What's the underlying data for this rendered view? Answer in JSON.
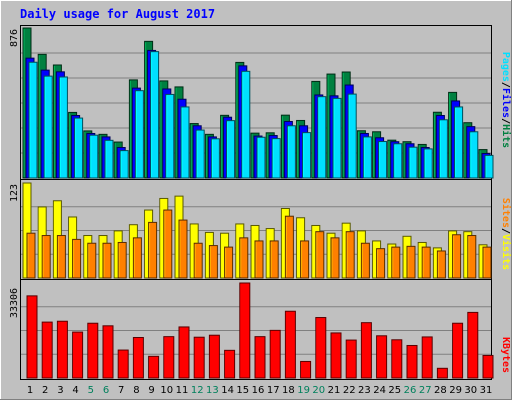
{
  "chart_data": [
    {
      "type": "bar",
      "title": "Daily usage for August 2017",
      "categories": [
        "1",
        "2",
        "3",
        "4",
        "5",
        "6",
        "7",
        "8",
        "9",
        "10",
        "11",
        "12",
        "13",
        "14",
        "15",
        "16",
        "17",
        "18",
        "19",
        "20",
        "21",
        "22",
        "23",
        "24",
        "25",
        "26",
        "27",
        "28",
        "29",
        "30",
        "31"
      ],
      "weekend_days": [
        "5",
        "6",
        "12",
        "13",
        "19",
        "20",
        "26",
        "27"
      ],
      "ymax_label": "876",
      "ylim": [
        0,
        876
      ],
      "series": [
        {
          "name": "Hits",
          "color": "#008040",
          "values": [
            876,
            722,
            660,
            383,
            275,
            255,
            210,
            573,
            798,
            567,
            532,
            318,
            255,
            366,
            675,
            262,
            264,
            367,
            336,
            564,
            607,
            619,
            276,
            270,
            221,
            212,
            196,
            384,
            500,
            323,
            166
          ]
        },
        {
          "name": "Files",
          "color": "#0000ff",
          "values": [
            700,
            630,
            620,
            365,
            260,
            240,
            178,
            525,
            745,
            520,
            460,
            305,
            240,
            355,
            655,
            245,
            248,
            330,
            305,
            485,
            480,
            543,
            260,
            235,
            212,
            200,
            178,
            365,
            450,
            300,
            143
          ]
        },
        {
          "name": "Pages",
          "color": "#00e0ff",
          "values": [
            676,
            595,
            590,
            350,
            250,
            220,
            160,
            510,
            738,
            488,
            415,
            280,
            229,
            335,
            623,
            238,
            230,
            305,
            265,
            475,
            465,
            490,
            240,
            213,
            200,
            180,
            170,
            340,
            415,
            270,
            132
          ]
        }
      ]
    },
    {
      "type": "bar",
      "categories": [
        "1",
        "2",
        "3",
        "4",
        "5",
        "6",
        "7",
        "8",
        "9",
        "10",
        "11",
        "12",
        "13",
        "14",
        "15",
        "16",
        "17",
        "18",
        "19",
        "20",
        "21",
        "22",
        "23",
        "24",
        "25",
        "26",
        "27",
        "28",
        "29",
        "30",
        "31"
      ],
      "ymax_label": "123",
      "ylim": [
        0,
        123
      ],
      "series": [
        {
          "name": "Visits",
          "color": "#ffff00",
          "values": [
            123,
            92,
            100,
            79,
            55,
            55,
            61,
            69,
            88,
            103,
            106,
            70,
            59,
            58,
            70,
            68,
            64,
            90,
            78,
            68,
            58,
            71,
            61,
            48,
            44,
            54,
            46,
            39,
            61,
            60,
            43
          ]
        },
        {
          "name": "Sites",
          "color": "#ff8000",
          "values": [
            58,
            55,
            55,
            50,
            45,
            45,
            46,
            52,
            72,
            88,
            75,
            45,
            42,
            40,
            52,
            48,
            48,
            80,
            48,
            60,
            52,
            60,
            45,
            38,
            40,
            41,
            40,
            35,
            56,
            55,
            40
          ]
        }
      ]
    },
    {
      "type": "bar",
      "categories": [
        "1",
        "2",
        "3",
        "4",
        "5",
        "6",
        "7",
        "8",
        "9",
        "10",
        "11",
        "12",
        "13",
        "14",
        "15",
        "16",
        "17",
        "18",
        "19",
        "20",
        "21",
        "22",
        "23",
        "24",
        "25",
        "26",
        "27",
        "28",
        "29",
        "30",
        "31"
      ],
      "ymax_label": "33306",
      "ylim": [
        0,
        33306
      ],
      "series": [
        {
          "name": "KBytes",
          "color": "#ff0000",
          "values": [
            28800,
            19600,
            19900,
            16100,
            19200,
            18300,
            9800,
            14200,
            7600,
            14500,
            17900,
            14300,
            15000,
            9700,
            33306,
            14500,
            16700,
            23400,
            5800,
            21200,
            15800,
            13300,
            19400,
            14800,
            13400,
            11400,
            14400,
            3400,
            19200,
            23000,
            7900
          ]
        }
      ]
    }
  ],
  "legend": {
    "top": {
      "pages": "Pages",
      "files": "Files",
      "hits": "Hits",
      "sep": "/"
    },
    "middle": {
      "sites": "Sites",
      "visits": "Visits",
      "sep": "/"
    },
    "bottom": {
      "kbytes": "KBytes"
    }
  },
  "colors": {
    "frame": "#c0c0c0",
    "plot_bg": "#c0c0c0",
    "grid": "#808080",
    "weekday_tick": "#000000",
    "weekend_tick": "#00805c",
    "title": "#0000ff"
  }
}
